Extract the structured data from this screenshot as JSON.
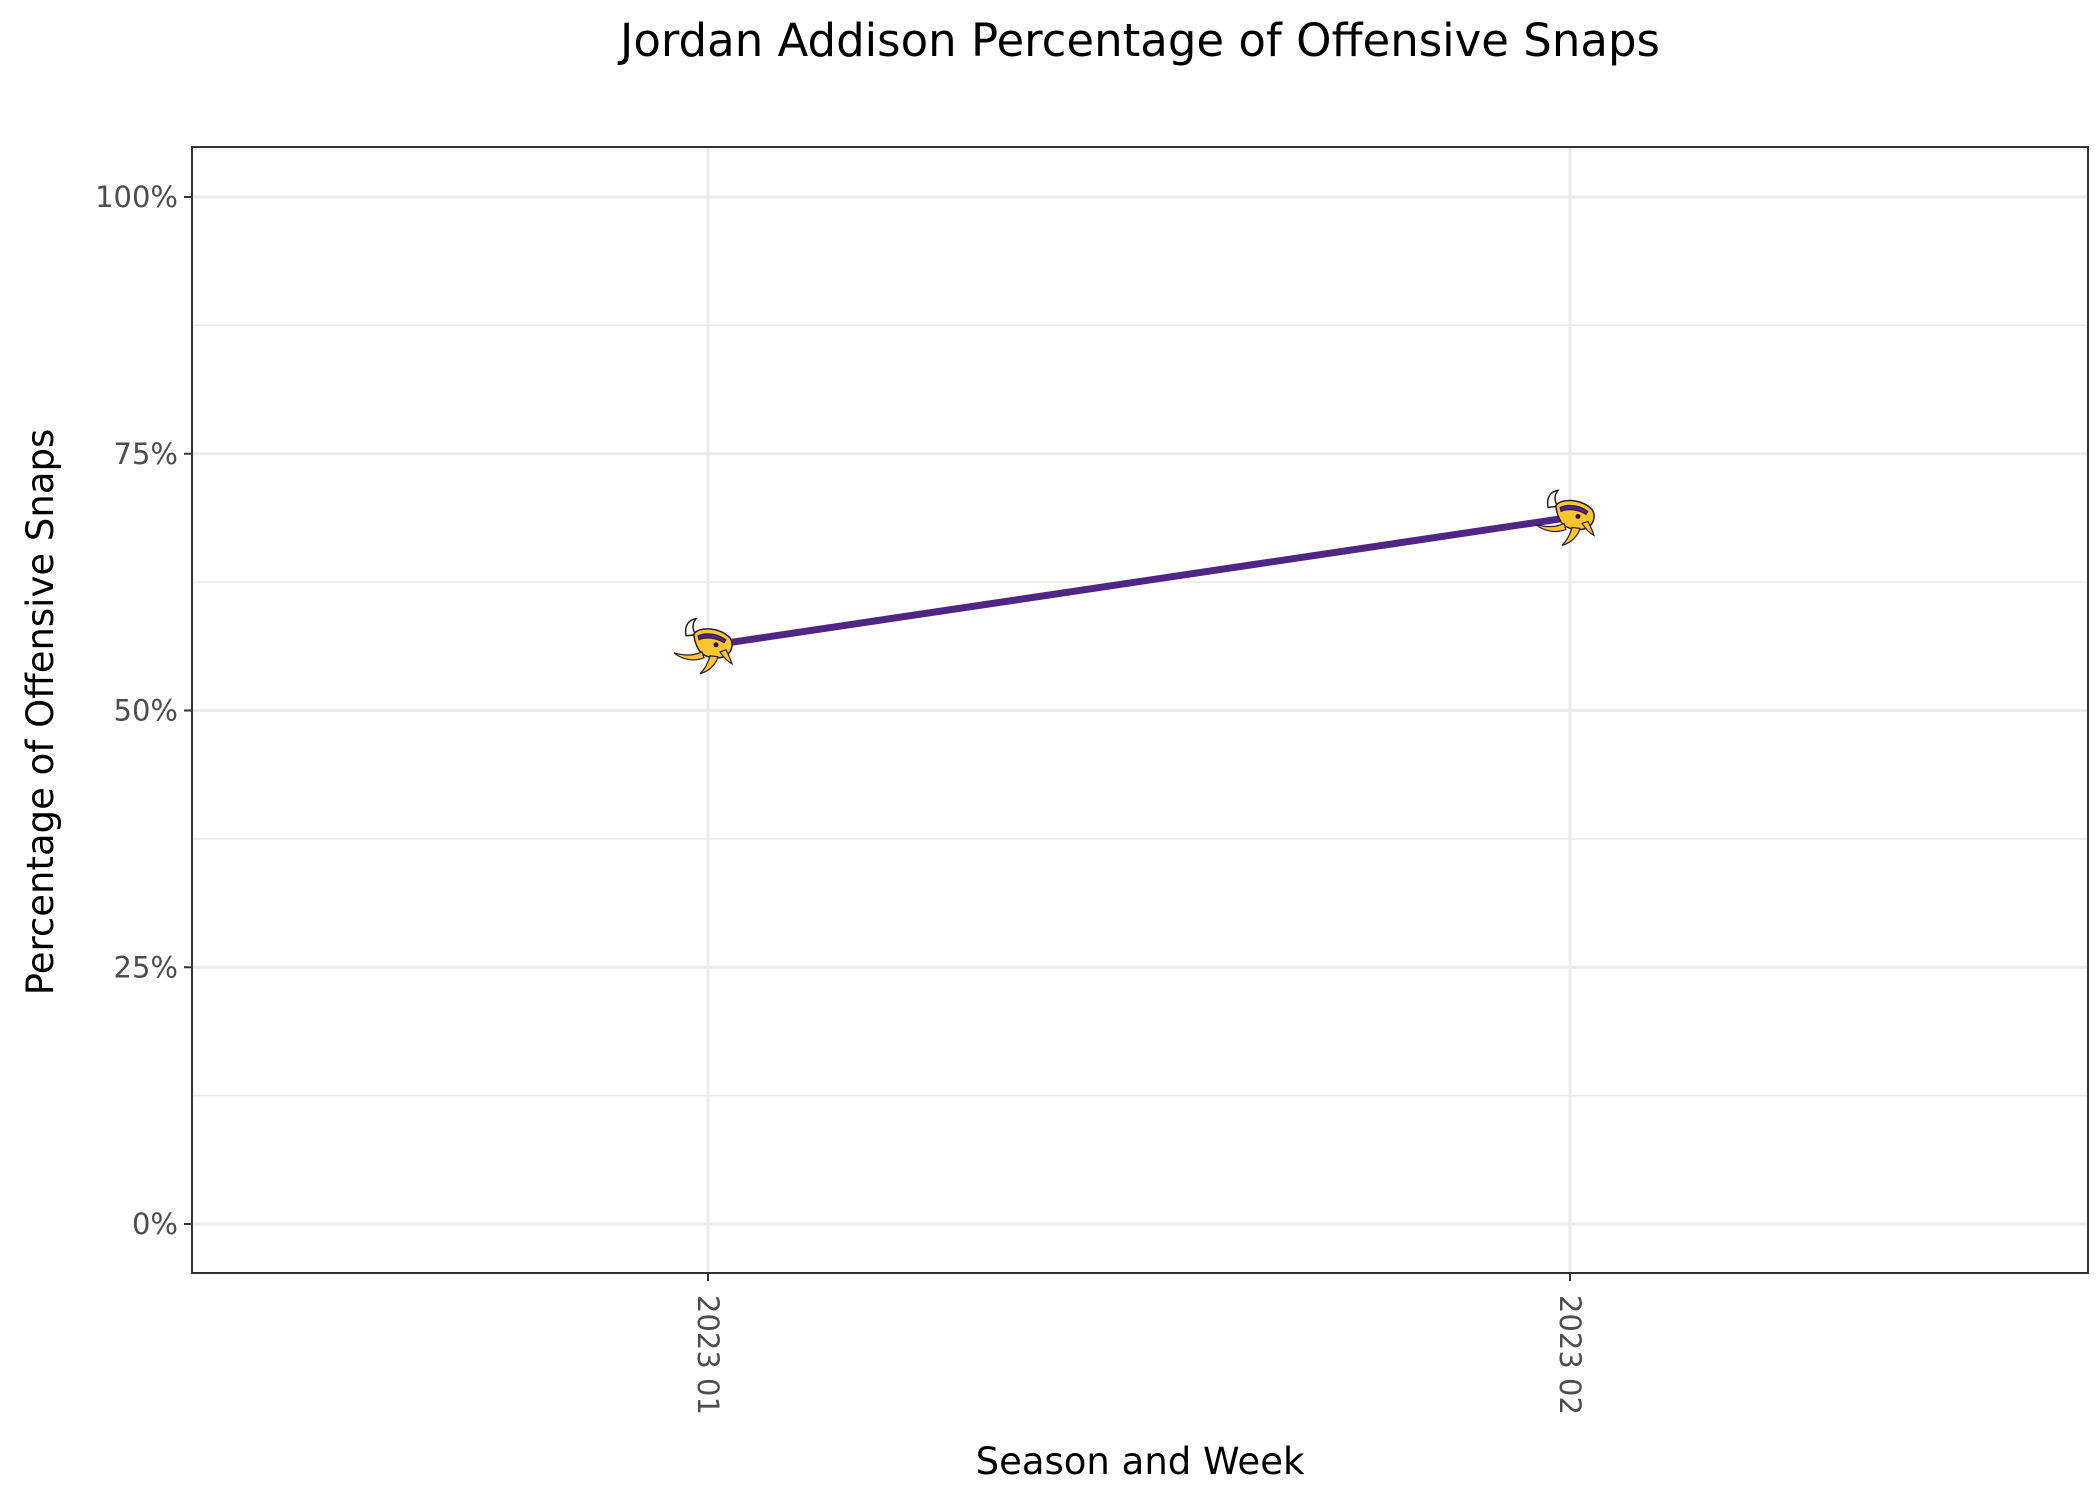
{
  "chart_data": {
    "type": "line",
    "title": "Jordan Addison Percentage of Offensive Snaps",
    "xlabel": "Season and Week",
    "ylabel": "Percentage of Offensive Snaps",
    "categories": [
      "2023 01",
      "2023 02"
    ],
    "series": [
      {
        "values": [
          0.563,
          0.688
        ],
        "color": "#4f2683",
        "marker": "minnesota-vikings-logo"
      }
    ],
    "ylim": [
      0,
      1
    ],
    "yticks": [
      0,
      0.25,
      0.5,
      0.75,
      1.0
    ],
    "yticklabels": [
      "0%",
      "25%",
      "50%",
      "75%",
      "100%"
    ],
    "grid": true,
    "legend": "none"
  }
}
